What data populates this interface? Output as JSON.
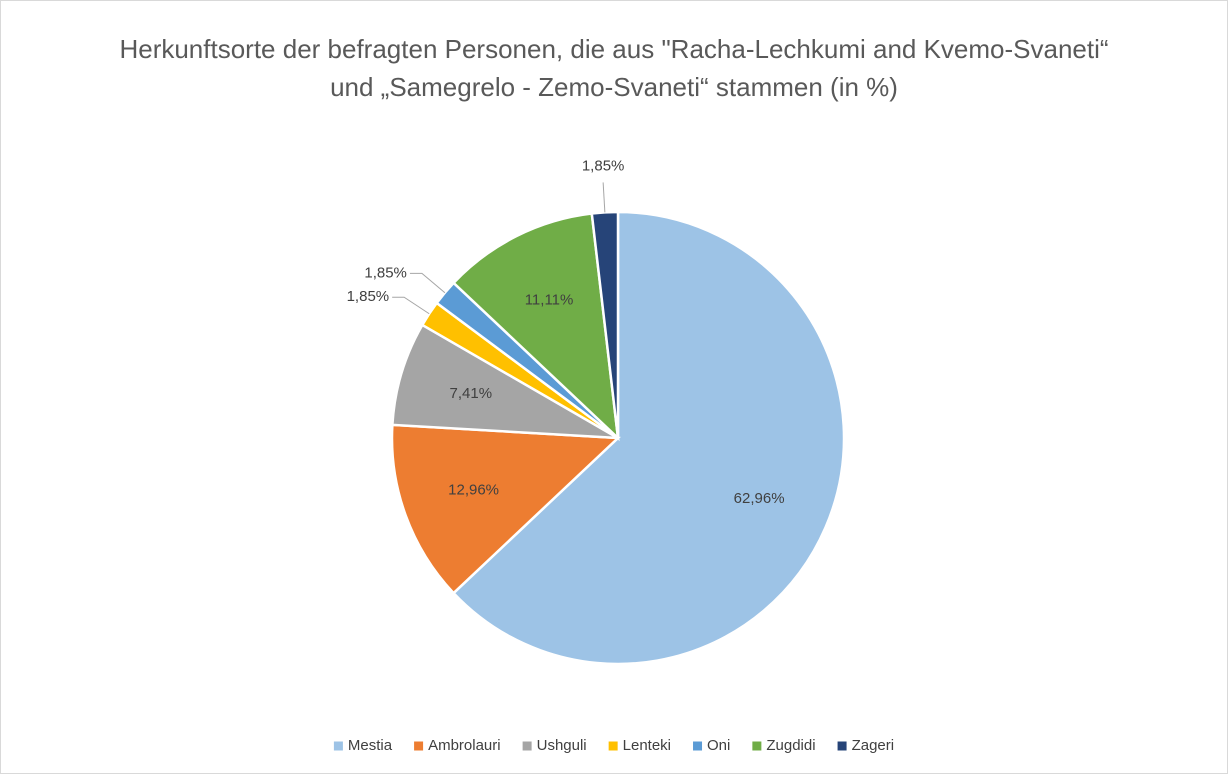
{
  "chart_data": {
    "type": "pie",
    "title": "Herkunftsorte der befragten Personen, die aus \"Racha-Lechkumi and Kvemo-Svaneti“ und „Samegrelo - Zemo-Svaneti“ stammen (in %)",
    "categories": [
      "Mestia",
      "Ambrolauri",
      "Ushguli",
      "Lenteki",
      "Oni",
      "Zugdidi",
      "Zageri"
    ],
    "values": [
      62.96,
      12.96,
      7.41,
      1.85,
      1.85,
      11.11,
      1.85
    ],
    "value_labels": [
      "62,96%",
      "12,96%",
      "7,41%",
      "1,85%",
      "1,85%",
      "11,11%",
      "1,85%"
    ],
    "colors": [
      "#9dc3e6",
      "#ed7d31",
      "#a5a5a5",
      "#ffc000",
      "#5b9bd5",
      "#70ad47",
      "#264478"
    ],
    "legend": "bottom"
  }
}
